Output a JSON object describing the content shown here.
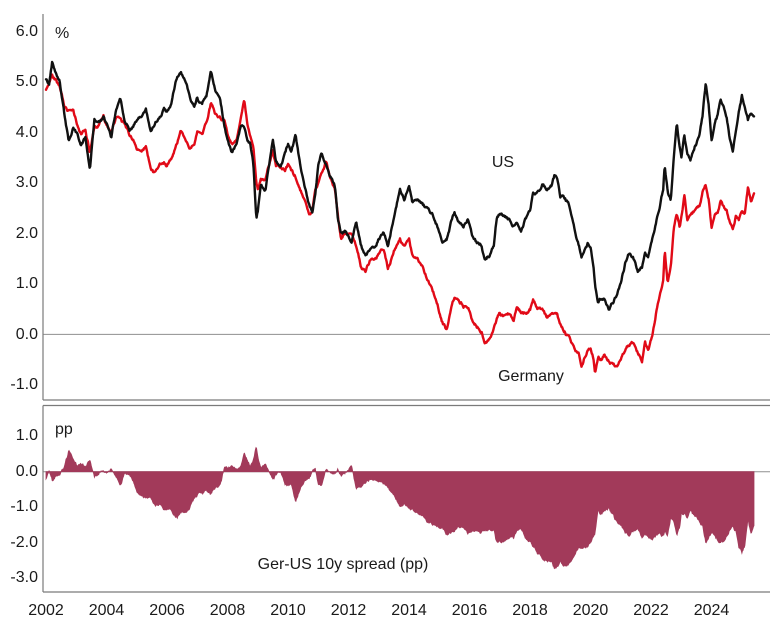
{
  "chart_data": {
    "type": "line",
    "title": "",
    "xlabel": "",
    "grid": "none",
    "legend_position": "inline-labels",
    "xlim": [
      2001.9,
      2025.93
    ],
    "xticks": [
      2002,
      2004,
      2006,
      2008,
      2010,
      2012,
      2014,
      2016,
      2018,
      2020,
      2022,
      2024
    ],
    "xtick_labels": [
      "2002",
      "2004",
      "2006",
      "2008",
      "2010",
      "2012",
      "2014",
      "2016",
      "2018",
      "2020",
      "2022",
      "2024"
    ],
    "axis_color": "#7a7a7a",
    "zero_line_color": "#8f8f8f",
    "panels": [
      {
        "id": "yields",
        "ylabel": "%",
        "ylim": [
          -1.3,
          6.35
        ],
        "yticks": [
          6.0,
          5.0,
          4.0,
          3.0,
          2.0,
          1.0,
          0.0,
          -1.0
        ],
        "ytick_labels": [
          "6.0",
          "5.0",
          "4.0",
          "3.0",
          "2.0",
          "1.0",
          "0.0",
          "-1.0"
        ],
        "series": [
          {
            "name": "US",
            "type": "line",
            "color": "#111111",
            "label_color": "#1a1a1a"
          },
          {
            "name": "Germany",
            "type": "line",
            "color": "#e10a17",
            "label_color": "#e10a17"
          }
        ]
      },
      {
        "id": "spread",
        "ylabel": "pp",
        "ylim": [
          -3.4,
          1.87
        ],
        "yticks": [
          1.0,
          0.0,
          -1.0,
          -2.0,
          -3.0
        ],
        "ytick_labels": [
          "1.0",
          "0.0",
          "-1.0",
          "-2.0",
          "-3.0"
        ],
        "series": [
          {
            "name": "Ger-US 10y spread (pp)",
            "type": "area",
            "color": "#a23a5a",
            "label_color": "#a23a5a"
          }
        ]
      }
    ],
    "x": [
      2002,
      2002.1,
      2002.2,
      2002.3,
      2002.45,
      2002.6,
      2002.75,
      2002.9,
      2003,
      2003.15,
      2003.3,
      2003.45,
      2003.6,
      2003.75,
      2003.9,
      2004,
      2004.15,
      2004.3,
      2004.45,
      2004.6,
      2004.75,
      2004.9,
      2005,
      2005.15,
      2005.3,
      2005.45,
      2005.6,
      2005.75,
      2005.9,
      2006,
      2006.15,
      2006.3,
      2006.45,
      2006.6,
      2006.75,
      2006.9,
      2007,
      2007.15,
      2007.3,
      2007.45,
      2007.6,
      2007.75,
      2007.9,
      2008,
      2008.15,
      2008.3,
      2008.45,
      2008.55,
      2008.65,
      2008.75,
      2008.85,
      2008.95,
      2009,
      2009.1,
      2009.25,
      2009.4,
      2009.5,
      2009.6,
      2009.75,
      2009.9,
      2010,
      2010.1,
      2010.25,
      2010.4,
      2010.55,
      2010.7,
      2010.8,
      2010.9,
      2011,
      2011.1,
      2011.25,
      2011.4,
      2011.55,
      2011.65,
      2011.75,
      2011.9,
      2012,
      2012.1,
      2012.25,
      2012.4,
      2012.55,
      2012.7,
      2012.85,
      2013,
      2013.15,
      2013.3,
      2013.45,
      2013.6,
      2013.7,
      2013.85,
      2014,
      2014.1,
      2014.25,
      2014.4,
      2014.55,
      2014.7,
      2014.85,
      2015,
      2015.1,
      2015.25,
      2015.4,
      2015.5,
      2015.65,
      2015.8,
      2015.95,
      2016.1,
      2016.25,
      2016.4,
      2016.5,
      2016.65,
      2016.8,
      2016.9,
      2017,
      2017.15,
      2017.3,
      2017.45,
      2017.55,
      2017.7,
      2017.85,
      2018,
      2018.1,
      2018.25,
      2018.4,
      2018.55,
      2018.7,
      2018.8,
      2018.9,
      2019,
      2019.15,
      2019.3,
      2019.45,
      2019.6,
      2019.7,
      2019.8,
      2019.9,
      2020,
      2020.1,
      2020.15,
      2020.25,
      2020.35,
      2020.45,
      2020.6,
      2020.75,
      2020.9,
      2021,
      2021.15,
      2021.25,
      2021.4,
      2021.55,
      2021.7,
      2021.8,
      2021.9,
      2022,
      2022.1,
      2022.2,
      2022.3,
      2022.4,
      2022.45,
      2022.55,
      2022.65,
      2022.75,
      2022.85,
      2022.95,
      2023,
      2023.1,
      2023.2,
      2023.3,
      2023.45,
      2023.6,
      2023.7,
      2023.8,
      2023.9,
      2024,
      2024.1,
      2024.2,
      2024.3,
      2024.4,
      2024.5,
      2024.6,
      2024.7,
      2024.8,
      2024.9,
      2025,
      2025.1,
      2025.2,
      2025.3,
      2025.4
    ],
    "us": [
      5.05,
      4.95,
      5.4,
      5.25,
      5.1,
      4.4,
      3.85,
      4.1,
      4.0,
      3.75,
      3.9,
      3.3,
      4.3,
      4.25,
      4.3,
      4.15,
      3.85,
      4.4,
      4.7,
      4.3,
      4.1,
      4.2,
      4.25,
      4.3,
      4.45,
      4.0,
      4.2,
      4.35,
      4.5,
      4.4,
      4.6,
      5.0,
      5.2,
      5.0,
      4.7,
      4.55,
      4.75,
      4.55,
      4.7,
      5.2,
      4.75,
      4.6,
      4.1,
      3.85,
      3.55,
      3.7,
      4.1,
      4.05,
      3.85,
      3.8,
      3.4,
      2.25,
      2.4,
      2.9,
      2.8,
      3.5,
      3.9,
      3.5,
      3.4,
      3.6,
      3.8,
      3.7,
      3.95,
      3.4,
      3.0,
      2.6,
      2.45,
      2.85,
      3.4,
      3.6,
      3.35,
      3.15,
      2.9,
      2.2,
      1.95,
      2.0,
      1.9,
      1.8,
      2.2,
      1.75,
      1.5,
      1.6,
      1.7,
      1.9,
      2.0,
      1.75,
      2.2,
      2.6,
      2.9,
      2.7,
      3.0,
      2.7,
      2.7,
      2.6,
      2.5,
      2.4,
      2.3,
      2.1,
      1.9,
      1.95,
      2.25,
      2.4,
      2.2,
      2.1,
      2.25,
      1.95,
      1.8,
      1.75,
      1.45,
      1.55,
      1.8,
      2.35,
      2.45,
      2.4,
      2.3,
      2.2,
      2.3,
      2.1,
      2.35,
      2.45,
      2.8,
      2.85,
      3.0,
      2.85,
      2.9,
      3.1,
      3.05,
      2.7,
      2.65,
      2.5,
      2.1,
      1.8,
      1.55,
      1.75,
      1.85,
      1.8,
      1.4,
      1.0,
      0.65,
      0.7,
      0.7,
      0.55,
      0.7,
      0.9,
      1.05,
      1.45,
      1.65,
      1.6,
      1.3,
      1.3,
      1.55,
      1.45,
      1.75,
      1.95,
      2.3,
      2.6,
      2.9,
      3.4,
      2.9,
      2.7,
      3.6,
      4.2,
      3.7,
      3.5,
      3.9,
      3.5,
      3.4,
      3.7,
      3.9,
      4.3,
      4.95,
      4.6,
      3.9,
      4.15,
      4.3,
      4.6,
      4.45,
      4.3,
      3.9,
      3.7,
      4.1,
      4.45,
      4.75,
      4.5,
      4.25,
      4.4,
      4.4
    ],
    "germany": [
      4.85,
      4.95,
      5.15,
      5.1,
      4.95,
      4.6,
      4.45,
      4.4,
      4.2,
      3.95,
      4.05,
      3.6,
      4.15,
      4.2,
      4.35,
      4.15,
      3.95,
      4.25,
      4.3,
      4.15,
      3.95,
      3.8,
      3.6,
      3.55,
      3.65,
      3.25,
      3.15,
      3.3,
      3.4,
      3.35,
      3.5,
      3.8,
      4.05,
      3.95,
      3.7,
      3.75,
      3.95,
      3.9,
      4.15,
      4.55,
      4.35,
      4.3,
      4.3,
      4.0,
      3.75,
      3.9,
      4.4,
      4.65,
      4.2,
      4.0,
      3.8,
      3.05,
      2.95,
      3.1,
      3.05,
      3.4,
      3.6,
      3.3,
      3.25,
      3.2,
      3.3,
      3.2,
      3.1,
      2.8,
      2.6,
      2.3,
      2.35,
      2.85,
      3.05,
      3.2,
      3.4,
      3.1,
      2.9,
      2.3,
      1.85,
      2.0,
      1.95,
      1.95,
      1.8,
      1.4,
      1.25,
      1.45,
      1.4,
      1.55,
      1.65,
      1.25,
      1.55,
      1.8,
      1.95,
      1.75,
      1.95,
      1.65,
      1.55,
      1.4,
      1.2,
      1.0,
      0.8,
      0.5,
      0.3,
      0.1,
      0.6,
      0.8,
      0.65,
      0.55,
      0.6,
      0.25,
      0.15,
      0.1,
      -0.1,
      -0.05,
      0.15,
      0.3,
      0.4,
      0.3,
      0.35,
      0.25,
      0.5,
      0.4,
      0.35,
      0.45,
      0.7,
      0.55,
      0.55,
      0.35,
      0.45,
      0.45,
      0.4,
      0.2,
      0.1,
      -0.05,
      -0.25,
      -0.4,
      -0.7,
      -0.5,
      -0.3,
      -0.25,
      -0.45,
      -0.7,
      -0.45,
      -0.5,
      -0.4,
      -0.5,
      -0.55,
      -0.6,
      -0.5,
      -0.3,
      -0.2,
      -0.2,
      -0.4,
      -0.5,
      -0.1,
      -0.3,
      -0.1,
      0.2,
      0.6,
      0.9,
      1.1,
      1.7,
      1.0,
      1.3,
      2.1,
      2.4,
      2.1,
      2.3,
      2.7,
      2.2,
      2.3,
      2.4,
      2.5,
      2.8,
      2.95,
      2.7,
      2.1,
      2.35,
      2.45,
      2.65,
      2.5,
      2.4,
      2.2,
      2.1,
      2.35,
      2.3,
      2.45,
      2.4,
      2.9,
      2.6,
      2.75
    ],
    "spread": [
      -0.2,
      0,
      -0.25,
      -0.15,
      -0.15,
      0.2,
      0.6,
      0.3,
      0.2,
      0.2,
      0.15,
      0.3,
      -0.15,
      -0.05,
      0.05,
      0,
      0.1,
      -0.15,
      -0.4,
      -0.15,
      -0.15,
      -0.4,
      -0.65,
      -0.75,
      -0.8,
      -0.75,
      -1.05,
      -1.05,
      -1.1,
      -1.05,
      -1.1,
      -1.2,
      -1.15,
      -1.05,
      -1.0,
      -0.8,
      -0.8,
      -0.65,
      -0.55,
      -0.65,
      -0.4,
      -0.3,
      0.2,
      0.15,
      0.2,
      0.2,
      0.3,
      0.6,
      0.35,
      0.2,
      0.4,
      0.8,
      0.55,
      0.2,
      0.25,
      -0.1,
      -0.3,
      -0.2,
      -0.15,
      -0.4,
      -0.5,
      -0.5,
      -0.85,
      -0.6,
      -0.4,
      -0.3,
      -0.1,
      0,
      -0.35,
      -0.4,
      0.05,
      -0.05,
      0,
      0.1,
      -0.1,
      0,
      0.05,
      0.15,
      -0.4,
      -0.35,
      -0.25,
      -0.15,
      -0.3,
      -0.35,
      -0.35,
      -0.5,
      -0.65,
      -0.8,
      -0.95,
      -0.95,
      -1.05,
      -1.05,
      -1.15,
      -1.2,
      -1.3,
      -1.4,
      -1.5,
      -1.6,
      -1.6,
      -1.85,
      -1.65,
      -1.6,
      -1.55,
      -1.55,
      -1.65,
      -1.7,
      -1.65,
      -1.65,
      -1.55,
      -1.6,
      -1.65,
      -2.05,
      -2.05,
      -2.1,
      -1.95,
      -1.95,
      -1.8,
      -1.7,
      -2.0,
      -2.0,
      -2.1,
      -2.3,
      -2.45,
      -2.5,
      -2.45,
      -2.65,
      -2.65,
      -2.5,
      -2.55,
      -2.55,
      -2.35,
      -2.2,
      -2.25,
      -2.25,
      -2.15,
      -2.05,
      -1.85,
      -1.7,
      -1.1,
      -1.2,
      -1.1,
      -1.05,
      -1.25,
      -1.5,
      -1.55,
      -1.75,
      -1.85,
      -1.8,
      -1.7,
      -1.8,
      -1.65,
      -1.75,
      -1.85,
      -1.75,
      -1.7,
      -1.7,
      -1.8,
      -1.7,
      -1.9,
      -1.4,
      -1.5,
      -1.8,
      -1.6,
      -1.2,
      -1.2,
      -1.3,
      -1.1,
      -1.3,
      -1.4,
      -1.5,
      -2.0,
      -1.9,
      -1.8,
      -1.8,
      -1.85,
      -1.95,
      -1.95,
      -1.9,
      -1.7,
      -1.6,
      -1.75,
      -2.15,
      -2.3,
      -2.1,
      -1.35,
      -1.8,
      -1.65
    ]
  }
}
